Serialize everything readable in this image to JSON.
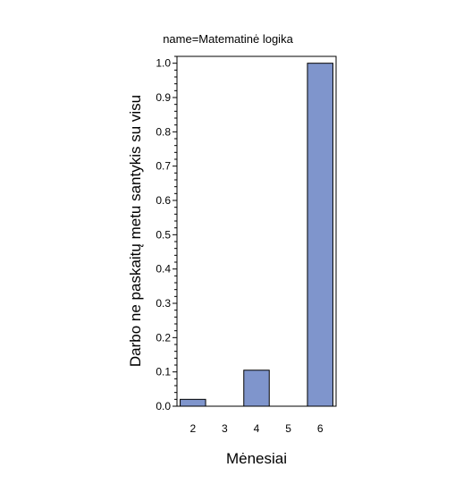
{
  "chart_data": {
    "type": "bar",
    "title": "name=Matematinė logika",
    "xlabel": "Mėnesiai",
    "ylabel": "Darbo ne paskaitų metu santykis su visu",
    "categories": [
      "2",
      "3",
      "4",
      "5",
      "6"
    ],
    "values": [
      0.02,
      0,
      0.105,
      0,
      1.0
    ],
    "ylim": [
      0,
      1.02
    ],
    "yticks": [
      "0.0",
      "0.1",
      "0.2",
      "0.3",
      "0.4",
      "0.5",
      "0.6",
      "0.7",
      "0.8",
      "0.9",
      "1.0"
    ],
    "grid": false,
    "legend": "none"
  },
  "colors": {
    "bar_fill": "#7f95cc",
    "bar_stroke": "#000000",
    "axis": "#000000"
  }
}
